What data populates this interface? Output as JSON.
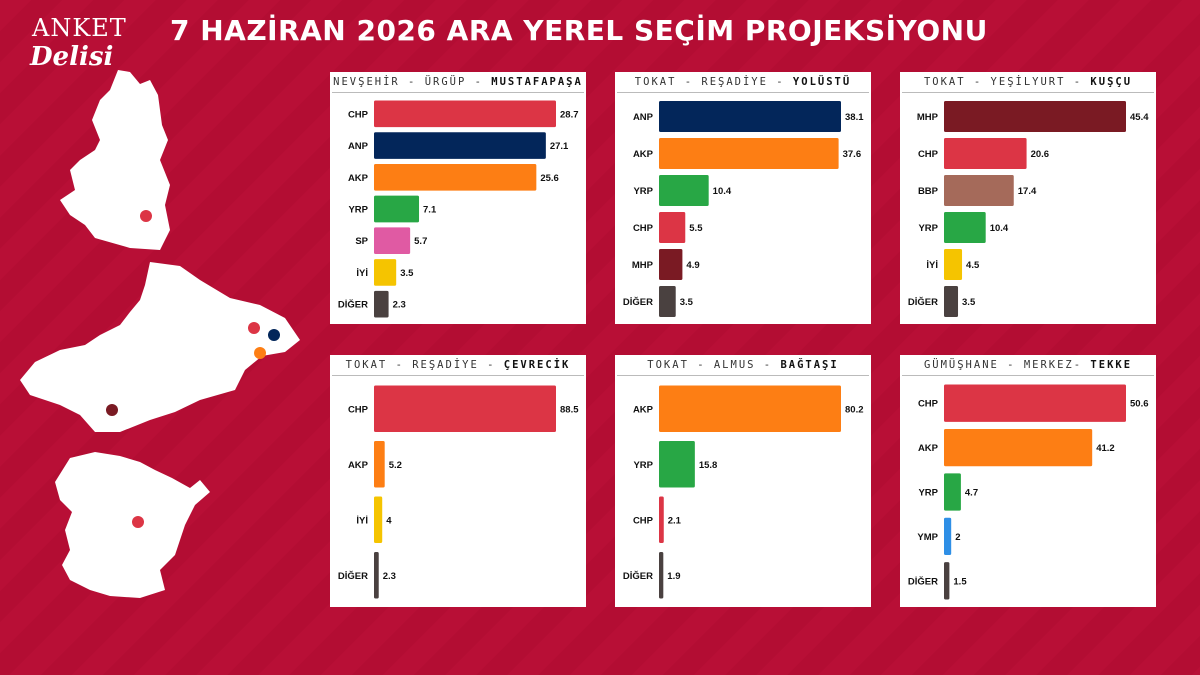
{
  "logo": {
    "line1": "ANKET",
    "line2": "Delisi"
  },
  "title": "7 HAZİRAN 2026 ARA YEREL SEÇİM PROJEKSİYONU",
  "colors": {
    "CHP": "#dc3545",
    "ANP": "#03265a",
    "AKP": "#fd7e14",
    "YRP": "#28a745",
    "SP": "#e05aa3",
    "İYİ": "#f5c400",
    "DİĞER": "#4a4140",
    "MHP": "#7a1a23",
    "BBP": "#a56a5a",
    "YMP": "#2e8fe6"
  },
  "panels": [
    {
      "province": "NEVŞEHİR",
      "district": "ÜRGÜP",
      "locality": "MUSTAFAPAŞA"
    },
    {
      "province": "TOKAT",
      "district": "REŞADİYE",
      "locality": "YOLÜSTÜ"
    },
    {
      "province": "TOKAT",
      "district": "YEŞİLYURT",
      "locality": "KUŞÇU"
    },
    {
      "province": "TOKAT",
      "district": "REŞADİYE",
      "locality": "ÇEVRECİK"
    },
    {
      "province": "TOKAT",
      "district": "ALMUS",
      "locality": "BAĞTAŞI"
    },
    {
      "province": "GÜMÜŞHANE",
      "district": "MERKEZ",
      "locality": "TEKKE"
    }
  ],
  "chart_data": [
    {
      "type": "bar",
      "orientation": "horizontal",
      "title": "NEVŞEHİR - ÜRGÜP - MUSTAFAPAŞA",
      "categories": [
        "CHP",
        "ANP",
        "AKP",
        "YRP",
        "SP",
        "İYİ",
        "DİĞER"
      ],
      "values": [
        28.7,
        27.1,
        25.6,
        7.1,
        5.7,
        3.5,
        2.3
      ]
    },
    {
      "type": "bar",
      "orientation": "horizontal",
      "title": "TOKAT - REŞADİYE - YOLÜSTÜ",
      "categories": [
        "ANP",
        "AKP",
        "YRP",
        "CHP",
        "MHP",
        "DİĞER"
      ],
      "values": [
        38.1,
        37.6,
        10.4,
        5.5,
        4.9,
        3.5
      ]
    },
    {
      "type": "bar",
      "orientation": "horizontal",
      "title": "TOKAT - YEŞİLYURT - KUŞÇU",
      "categories": [
        "MHP",
        "CHP",
        "BBP",
        "YRP",
        "İYİ",
        "DİĞER"
      ],
      "values": [
        45.4,
        20.6,
        17.4,
        10.4,
        4.5,
        3.5
      ]
    },
    {
      "type": "bar",
      "orientation": "horizontal",
      "title": "TOKAT - REŞADİYE - ÇEVRECİK",
      "categories": [
        "CHP",
        "AKP",
        "İYİ",
        "DİĞER"
      ],
      "values": [
        88.5,
        5.2,
        4,
        2.3
      ]
    },
    {
      "type": "bar",
      "orientation": "horizontal",
      "title": "TOKAT - ALMUS - BAĞTAŞI",
      "categories": [
        "AKP",
        "YRP",
        "CHP",
        "DİĞER"
      ],
      "values": [
        80.2,
        15.8,
        2.1,
        1.9
      ]
    },
    {
      "type": "bar",
      "orientation": "horizontal",
      "title": "GÜMÜŞHANE - MERKEZ- TEKKE",
      "categories": [
        "CHP",
        "AKP",
        "YRP",
        "YMP",
        "DİĞER"
      ],
      "values": [
        50.6,
        41.2,
        4.7,
        2,
        1.5
      ]
    }
  ]
}
